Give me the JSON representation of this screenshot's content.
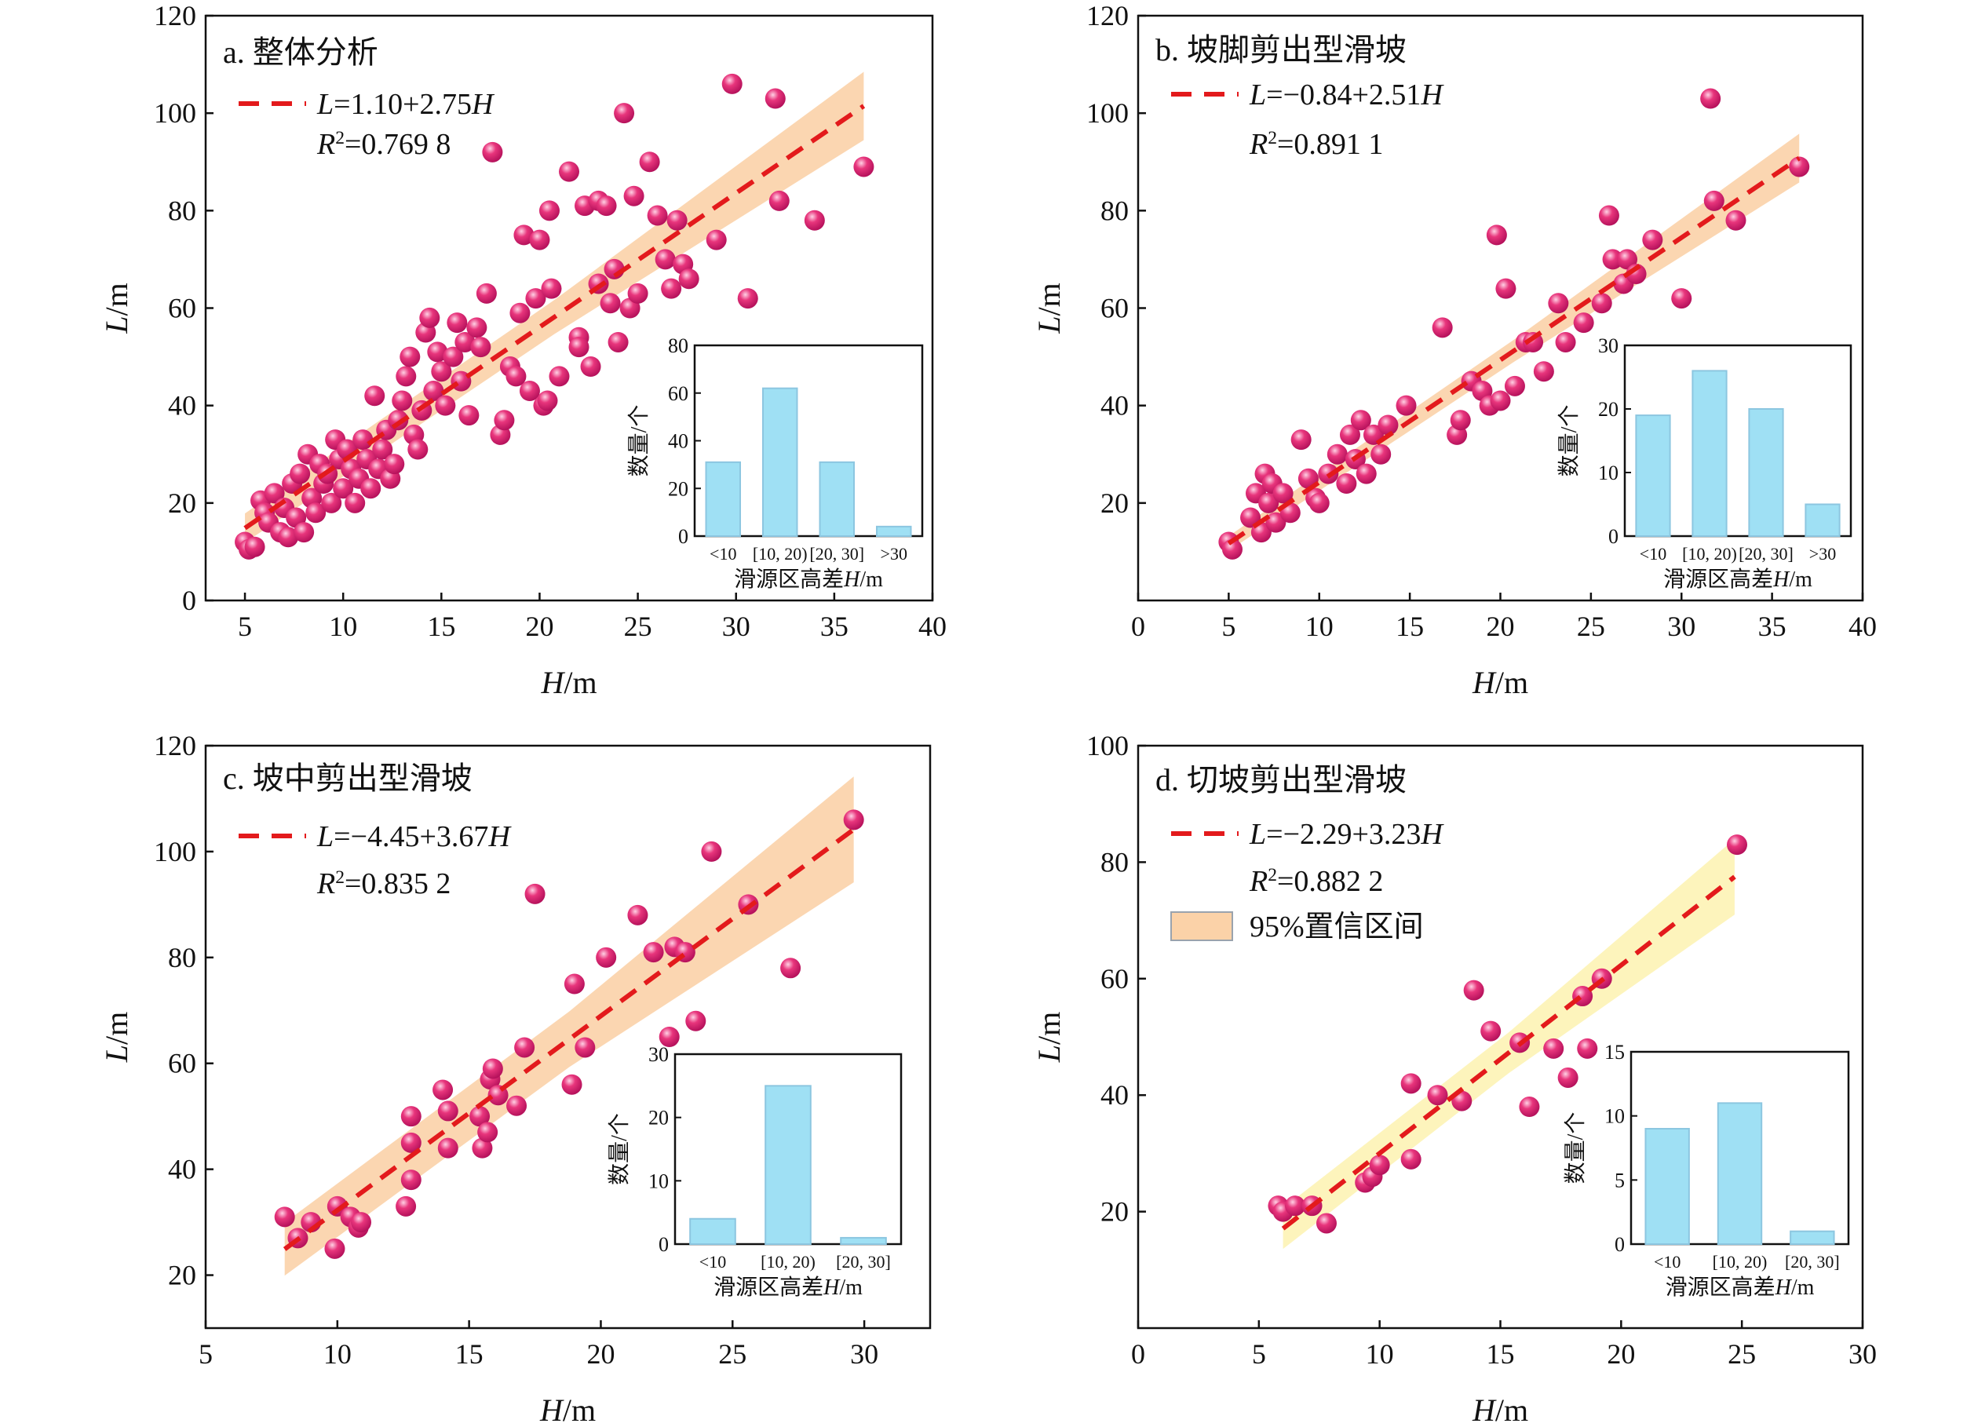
{
  "figure": {
    "colors": {
      "point": "#e8357c",
      "point_highlight": "#ffd1e4",
      "fit_line": "#e31a1c",
      "ci_band": "#fbd2a8",
      "ci_band_d": "#fdf3b5",
      "bar": "#9fe0f4",
      "bar_edge": "#8cc6e0",
      "axis": "#111111"
    }
  },
  "chart_data": [
    {
      "type": "scatter",
      "panel": "a",
      "title": "a. 整体分析",
      "xlabel": "H/m",
      "ylabel": "L/m",
      "xlim": [
        3,
        40
      ],
      "ylim": [
        0,
        120
      ],
      "xticks": [
        5,
        10,
        15,
        20,
        25,
        30,
        35,
        40
      ],
      "yticks": [
        0,
        20,
        40,
        60,
        80,
        100,
        120
      ],
      "fit": {
        "intercept": 1.1,
        "slope": 2.75,
        "x_range": [
          5,
          36.5
        ],
        "equation": "L=1.10+2.75H",
        "r2_label": "R²=0.769 8",
        "ci_half_width": [
          3,
          7
        ]
      },
      "points": [
        [
          5,
          12
        ],
        [
          5.2,
          10.5
        ],
        [
          5.5,
          11
        ],
        [
          5.8,
          20.5
        ],
        [
          6,
          18
        ],
        [
          6.2,
          16
        ],
        [
          6.5,
          22
        ],
        [
          6.8,
          14
        ],
        [
          7,
          19
        ],
        [
          7.2,
          13
        ],
        [
          7.4,
          24
        ],
        [
          7.6,
          17
        ],
        [
          7.8,
          26
        ],
        [
          8,
          14
        ],
        [
          8.2,
          30
        ],
        [
          8.4,
          21
        ],
        [
          8.6,
          18
        ],
        [
          8.8,
          28
        ],
        [
          9,
          24
        ],
        [
          9.2,
          26
        ],
        [
          9.4,
          20
        ],
        [
          9.6,
          33
        ],
        [
          9.8,
          29
        ],
        [
          10,
          23
        ],
        [
          10.2,
          31
        ],
        [
          10.4,
          27
        ],
        [
          10.6,
          20
        ],
        [
          10.8,
          25
        ],
        [
          11,
          33
        ],
        [
          11.2,
          29
        ],
        [
          11.4,
          23
        ],
        [
          11.6,
          42
        ],
        [
          11.8,
          27
        ],
        [
          12,
          31
        ],
        [
          12.2,
          35
        ],
        [
          12.4,
          25
        ],
        [
          12.6,
          28
        ],
        [
          12.8,
          37
        ],
        [
          13,
          41
        ],
        [
          13.2,
          46
        ],
        [
          13.4,
          50
        ],
        [
          13.6,
          34
        ],
        [
          13.8,
          31
        ],
        [
          14,
          39
        ],
        [
          14.2,
          55
        ],
        [
          14.4,
          58
        ],
        [
          14.6,
          43
        ],
        [
          14.8,
          51
        ],
        [
          15,
          47
        ],
        [
          15.2,
          40
        ],
        [
          15.6,
          50
        ],
        [
          15.8,
          57
        ],
        [
          16,
          45
        ],
        [
          16.2,
          53
        ],
        [
          16.4,
          38
        ],
        [
          16.8,
          56
        ],
        [
          17,
          52
        ],
        [
          17.3,
          63
        ],
        [
          17.6,
          92
        ],
        [
          18,
          34
        ],
        [
          18.2,
          37
        ],
        [
          18.5,
          48
        ],
        [
          18.8,
          46
        ],
        [
          19,
          59
        ],
        [
          19.2,
          75
        ],
        [
          19.5,
          43
        ],
        [
          19.8,
          62
        ],
        [
          20,
          74
        ],
        [
          20.2,
          40
        ],
        [
          20.4,
          41
        ],
        [
          20.5,
          80
        ],
        [
          20.6,
          64
        ],
        [
          21,
          46
        ],
        [
          21.5,
          88
        ],
        [
          22,
          54
        ],
        [
          22,
          52
        ],
        [
          22.3,
          81
        ],
        [
          22.6,
          48
        ],
        [
          23,
          82
        ],
        [
          23,
          65
        ],
        [
          23.4,
          81
        ],
        [
          23.6,
          61
        ],
        [
          23.8,
          68
        ],
        [
          24,
          53
        ],
        [
          24.3,
          100
        ],
        [
          24.6,
          60
        ],
        [
          24.8,
          83
        ],
        [
          25,
          63
        ],
        [
          25.6,
          90
        ],
        [
          26,
          79
        ],
        [
          26.4,
          70
        ],
        [
          26.7,
          64
        ],
        [
          27,
          78
        ],
        [
          27.3,
          69
        ],
        [
          27.6,
          66
        ],
        [
          29,
          74
        ],
        [
          29.8,
          106
        ],
        [
          30.6,
          62
        ],
        [
          32,
          103
        ],
        [
          32.2,
          82
        ],
        [
          34,
          78
        ],
        [
          36.5,
          89
        ]
      ],
      "inset": {
        "xlabel": "滑源区高差H/m",
        "ylabel": "数量/个",
        "categories": [
          "<10",
          "[10, 20)",
          "[20, 30]",
          ">30"
        ],
        "values": [
          31,
          62,
          31,
          4
        ],
        "ylim": [
          0,
          80
        ],
        "yticks": [
          0,
          20,
          40,
          60,
          80
        ]
      }
    },
    {
      "type": "scatter",
      "panel": "b",
      "title": "b. 坡脚剪出型滑坡",
      "xlabel": "H/m",
      "ylabel": "L/m",
      "xlim": [
        0,
        40
      ],
      "ylim": [
        0,
        120
      ],
      "xticks": [
        0,
        5,
        10,
        15,
        20,
        25,
        30,
        35,
        40
      ],
      "yticks": [
        20,
        40,
        60,
        80,
        100,
        120
      ],
      "fit": {
        "intercept": -0.84,
        "slope": 2.51,
        "x_range": [
          5,
          36.5
        ],
        "equation": "L=−0.84+2.51H",
        "r2_label": "R²=0.891 1",
        "ci_half_width": [
          1.5,
          5
        ]
      },
      "points": [
        [
          5,
          12
        ],
        [
          5.2,
          10.5
        ],
        [
          6.2,
          17
        ],
        [
          6.5,
          22
        ],
        [
          6.8,
          14
        ],
        [
          7,
          26
        ],
        [
          7.2,
          20
        ],
        [
          7.4,
          24
        ],
        [
          7.6,
          16
        ],
        [
          8,
          22
        ],
        [
          8.4,
          18
        ],
        [
          9,
          33
        ],
        [
          9.4,
          25
        ],
        [
          9.8,
          21
        ],
        [
          10,
          20
        ],
        [
          10.5,
          26
        ],
        [
          11,
          30
        ],
        [
          11.5,
          24
        ],
        [
          11.7,
          34
        ],
        [
          12,
          29
        ],
        [
          12.3,
          37
        ],
        [
          12.6,
          26
        ],
        [
          13,
          34
        ],
        [
          13.4,
          30
        ],
        [
          13.8,
          36
        ],
        [
          14.8,
          40
        ],
        [
          16.8,
          56
        ],
        [
          17.6,
          34
        ],
        [
          17.8,
          37
        ],
        [
          18.4,
          45
        ],
        [
          19,
          43
        ],
        [
          19.4,
          40
        ],
        [
          19.8,
          75
        ],
        [
          20,
          41
        ],
        [
          20.3,
          64
        ],
        [
          20.8,
          44
        ],
        [
          21.4,
          53
        ],
        [
          21.8,
          53
        ],
        [
          22.4,
          47
        ],
        [
          23.2,
          61
        ],
        [
          23.6,
          53
        ],
        [
          24.6,
          57
        ],
        [
          25.6,
          61
        ],
        [
          26,
          79
        ],
        [
          26.2,
          70
        ],
        [
          26.8,
          65
        ],
        [
          27,
          70
        ],
        [
          27.5,
          67
        ],
        [
          28.4,
          74
        ],
        [
          30,
          62
        ],
        [
          31.6,
          103
        ],
        [
          31.8,
          82
        ],
        [
          33,
          78
        ],
        [
          36.5,
          89
        ]
      ],
      "inset": {
        "xlabel": "滑源区高差H/m",
        "ylabel": "数量/个",
        "categories": [
          "<10",
          "[10, 20)",
          "[20, 30]",
          ">30"
        ],
        "values": [
          19,
          26,
          20,
          5
        ],
        "ylim": [
          0,
          30
        ],
        "yticks": [
          0,
          10,
          20,
          30
        ]
      }
    },
    {
      "type": "scatter",
      "panel": "c",
      "title": "c. 坡中剪出型滑坡",
      "xlabel": "H/m",
      "ylabel": "L/m",
      "xlim": [
        5,
        32.5
      ],
      "ylim": [
        10,
        120
      ],
      "xticks": [
        5,
        10,
        15,
        20,
        25,
        30
      ],
      "yticks": [
        20,
        40,
        60,
        80,
        100,
        120
      ],
      "fit": {
        "intercept": -4.45,
        "slope": 3.67,
        "x_range": [
          8,
          29.6
        ],
        "equation": "L=−4.45+3.67H",
        "r2_label": "R²=0.835 2",
        "ci_half_width": [
          5,
          10
        ]
      },
      "points": [
        [
          8,
          31
        ],
        [
          8.5,
          27
        ],
        [
          9,
          30
        ],
        [
          9.9,
          25
        ],
        [
          10,
          33
        ],
        [
          10.5,
          31
        ],
        [
          10.8,
          29
        ],
        [
          10.9,
          30
        ],
        [
          12.6,
          33
        ],
        [
          12.8,
          38
        ],
        [
          12.8,
          45
        ],
        [
          12.8,
          50
        ],
        [
          14,
          55
        ],
        [
          14.2,
          51
        ],
        [
          14.2,
          44
        ],
        [
          15.4,
          50
        ],
        [
          15.5,
          44
        ],
        [
          15.7,
          47
        ],
        [
          15.8,
          57
        ],
        [
          15.9,
          59
        ],
        [
          16.1,
          54
        ],
        [
          16.8,
          52
        ],
        [
          17.1,
          63
        ],
        [
          17.5,
          92
        ],
        [
          18.9,
          56
        ],
        [
          19,
          75
        ],
        [
          19.4,
          63
        ],
        [
          20.2,
          80
        ],
        [
          21.4,
          88
        ],
        [
          22,
          81
        ],
        [
          22.6,
          65
        ],
        [
          22.8,
          82
        ],
        [
          23.2,
          81
        ],
        [
          23.6,
          68
        ],
        [
          24.2,
          100
        ],
        [
          25.6,
          90
        ],
        [
          27.2,
          78
        ],
        [
          29.6,
          106
        ]
      ],
      "inset": {
        "xlabel": "滑源区高差H/m",
        "ylabel": "数量/个",
        "categories": [
          "<10",
          "[10, 20)",
          "[20, 30]"
        ],
        "values": [
          4,
          25,
          1
        ],
        "ylim": [
          0,
          30
        ],
        "yticks": [
          0,
          10,
          20,
          30
        ]
      }
    },
    {
      "type": "scatter",
      "panel": "d",
      "title": "d. 切坡剪出型滑坡",
      "xlabel": "H/m",
      "ylabel": "L/m",
      "xlim": [
        0,
        30
      ],
      "ylim": [
        0,
        100
      ],
      "xticks": [
        0,
        5,
        10,
        15,
        20,
        25,
        30
      ],
      "yticks": [
        20,
        40,
        60,
        80,
        100
      ],
      "fit": {
        "intercept": -2.29,
        "slope": 3.23,
        "x_range": [
          6,
          24.7
        ],
        "equation": "L=−2.29+3.23H",
        "r2_label": "R²=0.882 2",
        "ci_half_width": [
          3.5,
          6.5
        ]
      },
      "legend_band": "95%置信区间",
      "points": [
        [
          5.8,
          21
        ],
        [
          6,
          20
        ],
        [
          6.5,
          21
        ],
        [
          7.2,
          21
        ],
        [
          7.8,
          18
        ],
        [
          9.4,
          25
        ],
        [
          9.7,
          26
        ],
        [
          10,
          28
        ],
        [
          11.3,
          29
        ],
        [
          11.3,
          42
        ],
        [
          12.4,
          40
        ],
        [
          13.4,
          39
        ],
        [
          13.9,
          58
        ],
        [
          14.6,
          51
        ],
        [
          15.8,
          49
        ],
        [
          16.2,
          38
        ],
        [
          17.2,
          48
        ],
        [
          17.8,
          43
        ],
        [
          18.4,
          57
        ],
        [
          19.2,
          60
        ],
        [
          24.8,
          83
        ],
        [
          18.6,
          48
        ]
      ],
      "inset": {
        "xlabel": "滑源区高差H/m",
        "ylabel": "数量/个",
        "categories": [
          "<10",
          "[10, 20)",
          "[20, 30]"
        ],
        "values": [
          9,
          11,
          1
        ],
        "ylim": [
          0,
          15
        ],
        "yticks": [
          0,
          5,
          10,
          15
        ]
      }
    }
  ]
}
